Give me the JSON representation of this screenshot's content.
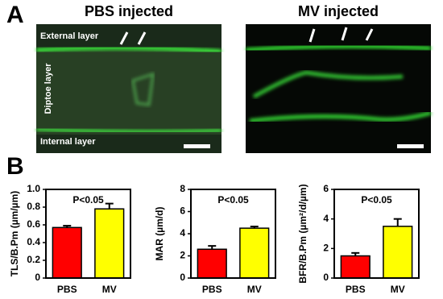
{
  "figure": {
    "panel_a": {
      "letter": "A",
      "left_title": "PBS injected",
      "right_title": "MV injected",
      "external": "External layer",
      "diploe": "Diptoe layer",
      "internal": "Internal layer"
    },
    "panel_b": {
      "letter": "B"
    }
  },
  "chart_data": [
    {
      "type": "bar",
      "ylabel": "TLS/B.Pm (µm/µm)",
      "annotation": "P<0.05",
      "categories": [
        "PBS",
        "MV"
      ],
      "values": [
        0.57,
        0.78
      ],
      "errors": [
        0.02,
        0.06
      ],
      "colors": [
        "#ff0000",
        "#ffff00"
      ],
      "ylim": [
        0,
        1
      ],
      "yticks": [
        0,
        0.2,
        0.4,
        0.6,
        0.8,
        {
          "value": 1,
          "label": "1.0"
        }
      ]
    },
    {
      "type": "bar",
      "ylabel": "MAR (µm/d)",
      "annotation": "P<0.05",
      "categories": [
        "PBS",
        "MV"
      ],
      "values": [
        2.6,
        4.5
      ],
      "errors": [
        0.3,
        0.15
      ],
      "colors": [
        "#ff0000",
        "#ffff00"
      ],
      "ylim": [
        0,
        8
      ],
      "yticks": [
        0,
        2,
        4,
        6,
        8
      ]
    },
    {
      "type": "bar",
      "ylabel": "BFR/B.Pm (µm²/d/µm)",
      "annotation": "P<0.05",
      "categories": [
        "PBS",
        "MV"
      ],
      "values": [
        1.5,
        3.5
      ],
      "errors": [
        0.2,
        0.5
      ],
      "colors": [
        "#ff0000",
        "#ffff00"
      ],
      "ylim": [
        0,
        6
      ],
      "yticks": [
        0,
        2,
        4,
        6
      ]
    }
  ]
}
